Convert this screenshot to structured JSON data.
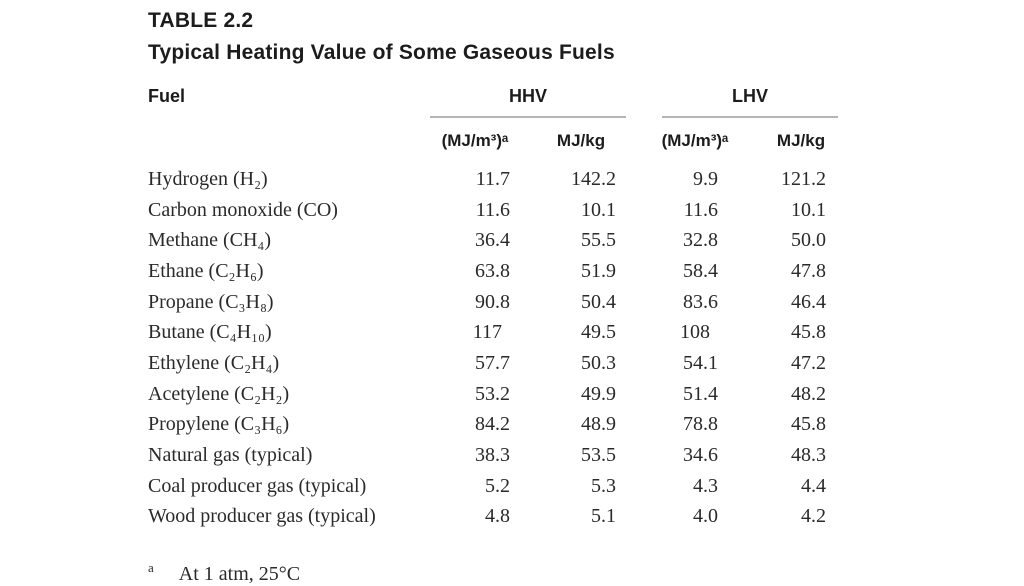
{
  "header": {
    "table_number": "TABLE 2.2",
    "title": "Typical Heating Value of Some Gaseous Fuels"
  },
  "columns": {
    "fuel": "Fuel",
    "hhv_group": "HHV",
    "lhv_group": "LHV",
    "volumetric_unit": "(MJ/m³)ᵃ",
    "mass_unit": "MJ/kg"
  },
  "rows": [
    {
      "fuel": "Hydrogen (H₂)",
      "hhv_mj_m3": "11.7",
      "hhv_mj_kg": "142.2",
      "lhv_mj_m3": "9.9",
      "lhv_mj_kg": "121.2"
    },
    {
      "fuel": "Carbon monoxide (CO)",
      "hhv_mj_m3": "11.6",
      "hhv_mj_kg": "10.1",
      "lhv_mj_m3": "11.6",
      "lhv_mj_kg": "10.1"
    },
    {
      "fuel": "Methane (CH₄)",
      "hhv_mj_m3": "36.4",
      "hhv_mj_kg": "55.5",
      "lhv_mj_m3": "32.8",
      "lhv_mj_kg": "50.0"
    },
    {
      "fuel": "Ethane (C₂H₆)",
      "hhv_mj_m3": "63.8",
      "hhv_mj_kg": "51.9",
      "lhv_mj_m3": "58.4",
      "lhv_mj_kg": "47.8"
    },
    {
      "fuel": "Propane (C₃H₈)",
      "hhv_mj_m3": "90.8",
      "hhv_mj_kg": "50.4",
      "lhv_mj_m3": "83.6",
      "lhv_mj_kg": "46.4"
    },
    {
      "fuel": "Butane (C₄H₁₀)",
      "hhv_mj_m3": "117",
      "hhv_mj_kg": "49.5",
      "lhv_mj_m3": "108",
      "lhv_mj_kg": "45.8"
    },
    {
      "fuel": "Ethylene (C₂H₄)",
      "hhv_mj_m3": "57.7",
      "hhv_mj_kg": "50.3",
      "lhv_mj_m3": "54.1",
      "lhv_mj_kg": "47.2"
    },
    {
      "fuel": "Acetylene (C₂H₂)",
      "hhv_mj_m3": "53.2",
      "hhv_mj_kg": "49.9",
      "lhv_mj_m3": "51.4",
      "lhv_mj_kg": "48.2"
    },
    {
      "fuel": "Propylene (C₃H₆)",
      "hhv_mj_m3": "84.2",
      "hhv_mj_kg": "48.9",
      "lhv_mj_m3": "78.8",
      "lhv_mj_kg": "45.8"
    },
    {
      "fuel": "Natural gas (typical)",
      "hhv_mj_m3": "38.3",
      "hhv_mj_kg": "53.5",
      "lhv_mj_m3": "34.6",
      "lhv_mj_kg": "48.3"
    },
    {
      "fuel": "Coal producer gas (typical)",
      "hhv_mj_m3": "5.2",
      "hhv_mj_kg": "5.3",
      "lhv_mj_m3": "4.3",
      "lhv_mj_kg": "4.4"
    },
    {
      "fuel": "Wood producer gas (typical)",
      "hhv_mj_m3": "4.8",
      "hhv_mj_kg": "5.1",
      "lhv_mj_m3": "4.0",
      "lhv_mj_kg": "4.2"
    }
  ],
  "footnote": {
    "marker": "a",
    "text": "At 1 atm, 25°C"
  },
  "colors": {
    "background": "#ffffff",
    "text": "#2a2a2a",
    "heading_text": "#1c1c1c",
    "rule": "#b5b5b5"
  }
}
